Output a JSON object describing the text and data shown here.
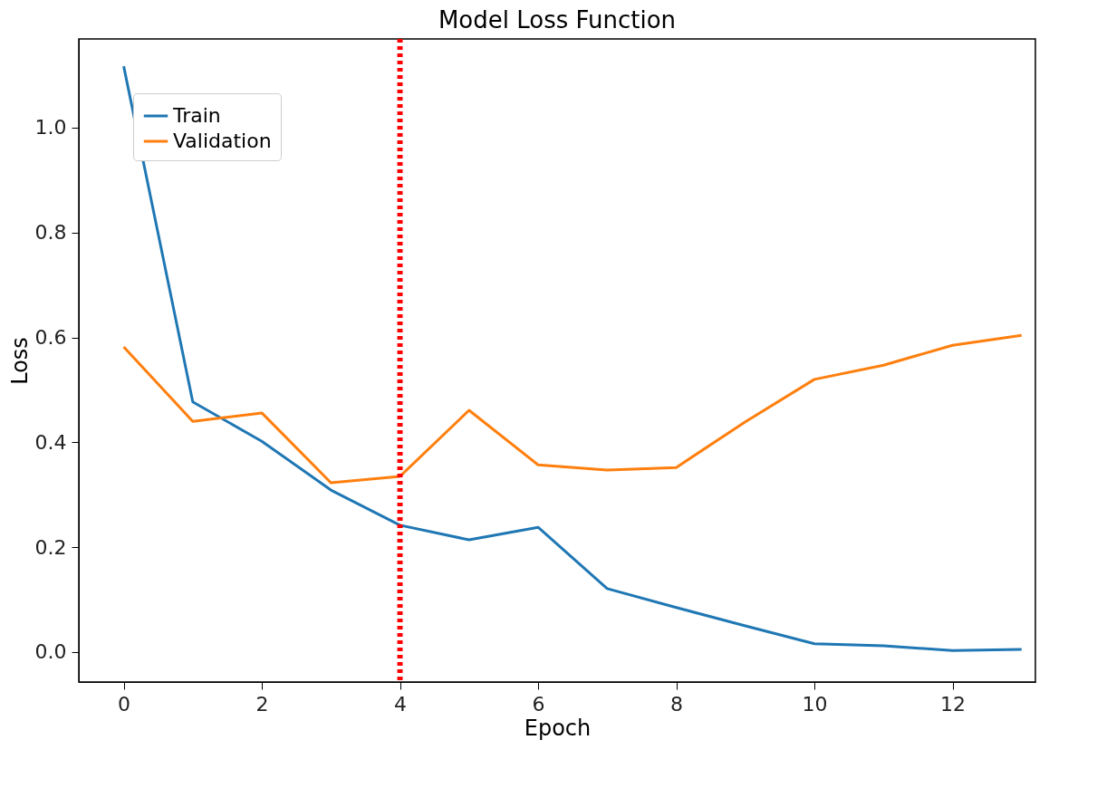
{
  "chart_data": {
    "type": "line",
    "title": "Model Loss Function",
    "xlabel": "Epoch",
    "ylabel": "Loss",
    "x": [
      0,
      1,
      2,
      3,
      4,
      5,
      6,
      7,
      8,
      9,
      10,
      11,
      12,
      13
    ],
    "series": [
      {
        "name": "Train",
        "color": "#1f77b4",
        "values": [
          1.117,
          0.477,
          0.402,
          0.309,
          0.242,
          0.214,
          0.238,
          0.121,
          0.085,
          0.05,
          0.016,
          0.012,
          0.003,
          0.005
        ]
      },
      {
        "name": "Validation",
        "color": "#ff7f0e",
        "values": [
          0.582,
          0.44,
          0.456,
          0.323,
          0.335,
          0.461,
          0.357,
          0.347,
          0.352,
          0.439,
          0.52,
          0.547,
          0.585,
          0.604
        ]
      }
    ],
    "xlim": [
      -0.65,
      13.2
    ],
    "xticks": [
      0,
      2,
      4,
      6,
      8,
      10,
      12
    ],
    "ylim": [
      -0.057,
      1.169
    ],
    "yticks": [
      {
        "value": 0,
        "label": "0.0"
      },
      {
        "value": 0.2,
        "label": "0.2"
      },
      {
        "value": 0.4,
        "label": "0.4"
      },
      {
        "value": 0.6,
        "label": "0.6"
      },
      {
        "value": 0.8,
        "label": "0.8"
      },
      {
        "value": 1,
        "label": "1.0"
      }
    ],
    "ref_lines": [
      {
        "axis": "x",
        "value": 4,
        "color": "#ff0000",
        "line_style": "dotted"
      }
    ],
    "legend": "top left",
    "grid": false
  }
}
